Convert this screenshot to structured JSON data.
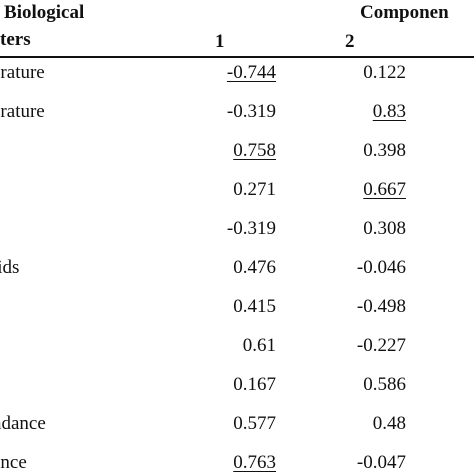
{
  "header": {
    "title_line1": "/ Biological",
    "title_line2": "ters",
    "component_label": "Componen",
    "col1": "1",
    "col2": "2"
  },
  "rows": [
    {
      "label": "erature",
      "c1": "-0.744",
      "c1_underlined": true,
      "c2": "0.122",
      "c2_underlined": false
    },
    {
      "label": "erature",
      "c1": "-0.319",
      "c1_underlined": false,
      "c2": "0.83",
      "c2_underlined": true
    },
    {
      "label": "",
      "c1": "0.758",
      "c1_underlined": true,
      "c2": "0.398",
      "c2_underlined": false
    },
    {
      "label": "",
      "c1": "0.271",
      "c1_underlined": false,
      "c2": "0.667",
      "c2_underlined": true
    },
    {
      "label": "",
      "c1": "-0.319",
      "c1_underlined": false,
      "c2": "0.308",
      "c2_underlined": false
    },
    {
      "label": "lids",
      "c1": "0.476",
      "c1_underlined": false,
      "c2": "-0.046",
      "c2_underlined": false
    },
    {
      "label": "",
      "c1": "0.415",
      "c1_underlined": false,
      "c2": "-0.498",
      "c2_underlined": false
    },
    {
      "label": "",
      "c1": "0.61",
      "c1_underlined": false,
      "c2": "-0.227",
      "c2_underlined": false
    },
    {
      "label": "",
      "c1": "0.167",
      "c1_underlined": false,
      "c2": "0.586",
      "c2_underlined": false
    },
    {
      "label": "ndance",
      "c1": "0.577",
      "c1_underlined": false,
      "c2": "0.48",
      "c2_underlined": false
    },
    {
      "label": "ance",
      "c1": "0.763",
      "c1_underlined": true,
      "c2": "-0.047",
      "c2_underlined": false
    }
  ]
}
